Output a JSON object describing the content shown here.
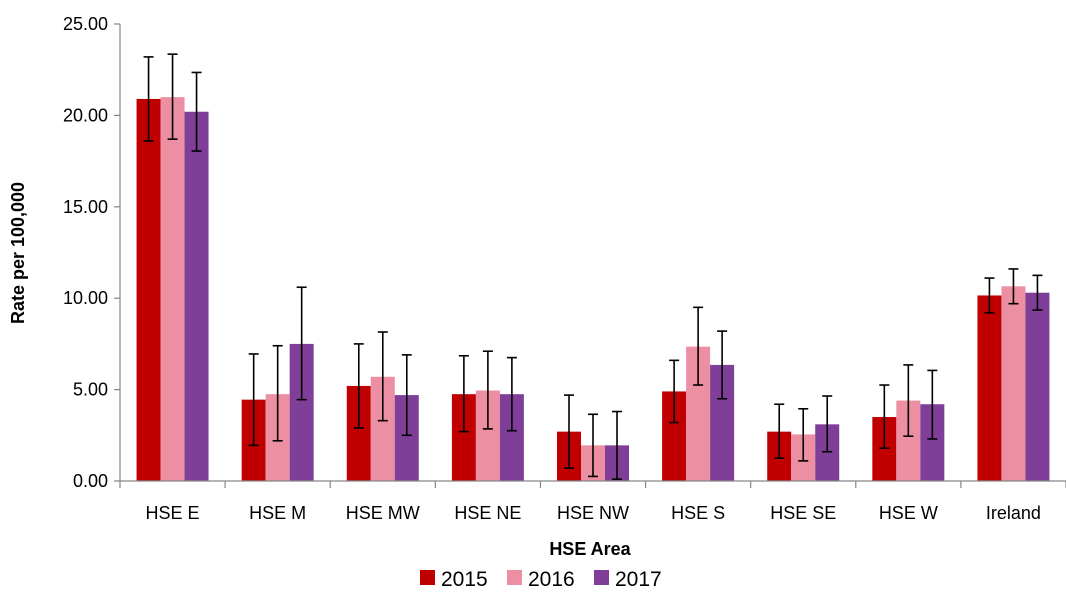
{
  "chart_data": {
    "type": "bar",
    "title": "",
    "xlabel": "HSE Area",
    "ylabel": "Rate per 100,000",
    "ylim": [
      0,
      25
    ],
    "yticks": [
      "0.00",
      "5.00",
      "10.00",
      "15.00",
      "20.00",
      "25.00"
    ],
    "categories": [
      "HSE E",
      "HSE M",
      "HSE MW",
      "HSE NE",
      "HSE NW",
      "HSE S",
      "HSE SE",
      "HSE W",
      "Ireland"
    ],
    "series": [
      {
        "name": "2015",
        "color": "#c00000",
        "values": [
          20.9,
          4.45,
          5.2,
          4.75,
          2.7,
          4.9,
          2.7,
          3.5,
          10.15
        ],
        "error_low": [
          18.6,
          1.95,
          2.9,
          2.7,
          0.7,
          3.2,
          1.25,
          1.8,
          9.2
        ],
        "error_high": [
          23.2,
          6.95,
          7.5,
          6.85,
          4.7,
          6.6,
          4.2,
          5.25,
          11.1
        ]
      },
      {
        "name": "2016",
        "color": "#ec8fa3",
        "values": [
          21.0,
          4.75,
          5.7,
          4.95,
          1.95,
          7.35,
          2.55,
          4.4,
          10.65
        ],
        "error_low": [
          18.7,
          2.2,
          3.3,
          2.85,
          0.25,
          5.25,
          1.1,
          2.45,
          9.7
        ],
        "error_high": [
          23.35,
          7.4,
          8.15,
          7.1,
          3.65,
          9.5,
          3.95,
          6.35,
          11.6
        ]
      },
      {
        "name": "2017",
        "color": "#7f3f98",
        "values": [
          20.2,
          7.5,
          4.7,
          4.75,
          1.95,
          6.35,
          3.1,
          4.2,
          10.3
        ],
        "error_low": [
          18.05,
          4.45,
          2.5,
          2.75,
          0.1,
          4.5,
          1.6,
          2.3,
          9.35
        ],
        "error_high": [
          22.35,
          10.6,
          6.9,
          6.75,
          3.8,
          8.2,
          4.65,
          6.05,
          11.25
        ]
      }
    ],
    "grid": false,
    "legend": "bottom-center"
  }
}
